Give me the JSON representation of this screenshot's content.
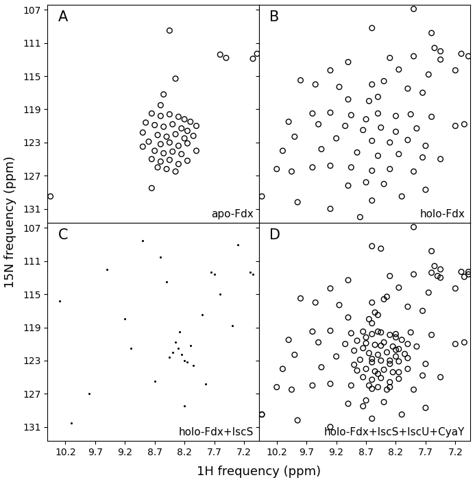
{
  "x_label": "1H frequency (ppm)",
  "y_label": "15N frequency (ppm)",
  "chart_data": [
    {
      "type": "scatter",
      "title": "A",
      "annotation": "apo-Fdx",
      "color": "#000000",
      "marker": "circle",
      "tick_labels": "y",
      "xlim": [
        10.5,
        6.95
      ],
      "ylim": [
        132.7,
        106.4
      ],
      "xticks": [
        10.2,
        9.7,
        9.2,
        8.7,
        8.2,
        7.7,
        7.2
      ],
      "yticks": [
        107,
        111,
        115,
        119,
        123,
        127,
        131
      ],
      "x": [
        8.75,
        8.6,
        8.45,
        8.3,
        8.2,
        8.1,
        8.85,
        8.7,
        8.55,
        8.4,
        8.25,
        8.15,
        8.9,
        8.65,
        8.5,
        8.35,
        8.2,
        8.05,
        8.8,
        8.6,
        8.45,
        8.3,
        8.15,
        8.7,
        8.55,
        8.4,
        8.25,
        8.75,
        8.6,
        8.45,
        8.3,
        8.15,
        8.5,
        8.35,
        8.65,
        8.0,
        8.0,
        8.9,
        8.75,
        8.45,
        8.35,
        8.55,
        7.6,
        7.5,
        6.98,
        7.05,
        10.45,
        8.6
      ],
      "y": [
        119.5,
        119.8,
        119.6,
        119.9,
        120.2,
        120.5,
        120.6,
        120.9,
        121.1,
        120.8,
        121.3,
        121.6,
        121.8,
        122.1,
        122.3,
        122.0,
        122.5,
        122.2,
        122.9,
        123.2,
        123.0,
        123.4,
        123.1,
        124.0,
        124.3,
        124.1,
        124.4,
        125.0,
        125.3,
        125.1,
        125.6,
        125.2,
        126.2,
        126.5,
        126.0,
        121.0,
        124.0,
        123.5,
        128.5,
        109.5,
        115.3,
        117.2,
        112.4,
        112.8,
        112.3,
        112.9,
        129.5,
        118.5
      ]
    },
    {
      "type": "scatter",
      "title": "B",
      "annotation": "holo-Fdx",
      "color": "#000000",
      "marker": "circle",
      "tick_labels": false,
      "xlim": [
        10.5,
        6.95
      ],
      "ylim": [
        132.7,
        106.4
      ],
      "xticks": [
        10.2,
        9.7,
        9.2,
        8.7,
        8.2,
        7.7,
        7.2
      ],
      "yticks": [
        107,
        111,
        115,
        119,
        123,
        127,
        131
      ],
      "x": [
        7.9,
        8.6,
        7.6,
        7.55,
        7.45,
        7.1,
        6.98,
        7.45,
        7.9,
        9.0,
        8.3,
        9.3,
        8.15,
        7.65,
        7.2,
        9.8,
        9.55,
        9.15,
        8.6,
        8.4,
        8.0,
        7.75,
        9.0,
        8.65,
        8.5,
        9.6,
        9.3,
        8.95,
        8.7,
        8.5,
        8.2,
        7.95,
        7.6,
        10.0,
        9.5,
        9.05,
        8.75,
        8.45,
        8.2,
        7.85,
        7.2,
        7.05,
        9.9,
        9.2,
        8.6,
        8.3,
        8.0,
        7.7,
        10.1,
        9.45,
        8.85,
        8.5,
        8.15,
        7.75,
        7.45,
        10.2,
        9.95,
        9.6,
        9.3,
        8.95,
        8.6,
        8.3,
        7.9,
        8.7,
        9.0,
        8.4,
        10.45,
        9.85,
        9.3,
        8.6,
        8.1,
        7.7,
        8.8
      ],
      "y": [
        106.9,
        109.2,
        109.8,
        111.6,
        112.0,
        112.3,
        112.6,
        113.0,
        112.6,
        113.3,
        112.8,
        114.3,
        114.2,
        114.8,
        114.3,
        115.5,
        116.0,
        116.3,
        116.0,
        115.6,
        116.5,
        117.0,
        117.8,
        118.0,
        117.5,
        119.5,
        119.4,
        119.7,
        120.2,
        119.5,
        119.8,
        119.6,
        119.9,
        120.5,
        120.8,
        121.0,
        121.5,
        121.2,
        121.7,
        121.3,
        121.0,
        120.8,
        122.3,
        122.5,
        122.8,
        123.0,
        122.7,
        123.4,
        124.0,
        123.8,
        124.2,
        124.6,
        124.4,
        124.8,
        125.0,
        126.2,
        126.5,
        126.0,
        125.8,
        126.0,
        126.4,
        126.2,
        126.5,
        127.8,
        128.2,
        128.0,
        129.5,
        130.2,
        131.0,
        130.0,
        129.5,
        128.7,
        132.0
      ]
    },
    {
      "type": "scatter",
      "title": "C",
      "annotation": "holo-Fdx+IscS",
      "color": "#000000",
      "marker": "dot",
      "tick_labels": true,
      "xlim": [
        10.5,
        6.95
      ],
      "ylim": [
        132.7,
        106.4
      ],
      "xticks": [
        10.2,
        9.7,
        9.2,
        8.7,
        8.2,
        7.7,
        7.2
      ],
      "yticks": [
        107,
        111,
        115,
        119,
        123,
        127,
        131
      ],
      "x": [
        8.3,
        8.25,
        8.2,
        8.15,
        8.35,
        8.4,
        8.1,
        8.28,
        8.05,
        8.45,
        7.75,
        7.7,
        7.1,
        7.05,
        7.6,
        9.2,
        9.5,
        8.9,
        7.9,
        10.3,
        8.6,
        9.1,
        7.4,
        8.7,
        9.8,
        7.85,
        8.2,
        10.1,
        8.5,
        7.3
      ],
      "y": [
        121.5,
        122.3,
        123.0,
        123.2,
        120.8,
        122.0,
        121.2,
        119.5,
        123.6,
        122.6,
        112.3,
        112.6,
        112.3,
        112.6,
        115.0,
        118.0,
        112.0,
        108.5,
        117.5,
        115.8,
        110.5,
        121.5,
        118.8,
        125.5,
        127.0,
        125.8,
        128.5,
        130.5,
        113.5,
        109.0
      ]
    },
    {
      "type": "scatter",
      "title": "D",
      "annotation": "holo-Fdx+IscS+IscU+CyaY",
      "color": "#000000",
      "marker": "circle",
      "tick_labels": "x",
      "xlim": [
        10.5,
        6.95
      ],
      "ylim": [
        132.7,
        106.4
      ],
      "xticks": [
        10.2,
        9.7,
        9.2,
        8.7,
        8.2,
        7.7,
        7.2
      ],
      "yticks": [
        107,
        111,
        115,
        119,
        123,
        127,
        131
      ],
      "x": [
        7.9,
        8.6,
        7.6,
        7.55,
        7.45,
        7.1,
        6.98,
        7.45,
        7.9,
        9.0,
        8.3,
        9.3,
        8.15,
        7.65,
        7.2,
        9.8,
        9.55,
        9.15,
        8.6,
        8.4,
        8.0,
        7.75,
        9.0,
        8.65,
        8.5,
        9.6,
        9.3,
        8.95,
        8.7,
        8.5,
        8.2,
        7.95,
        7.6,
        10.0,
        9.5,
        9.05,
        8.75,
        8.45,
        8.2,
        7.85,
        7.2,
        7.05,
        9.9,
        9.2,
        8.6,
        8.3,
        8.0,
        7.7,
        10.1,
        9.45,
        8.85,
        8.5,
        8.15,
        7.75,
        7.45,
        10.2,
        9.95,
        9.6,
        9.3,
        8.95,
        8.6,
        8.3,
        7.9,
        8.7,
        9.0,
        8.4,
        10.45,
        9.85,
        9.3,
        8.6,
        8.1,
        7.7,
        8.75,
        8.6,
        8.45,
        8.3,
        8.2,
        8.1,
        8.85,
        8.7,
        8.55,
        8.4,
        8.25,
        8.15,
        8.9,
        8.65,
        8.5,
        8.35,
        8.2,
        8.05,
        8.8,
        8.6,
        8.45,
        8.3,
        8.15,
        8.7,
        8.55,
        8.4,
        8.25,
        8.75,
        8.6,
        8.45,
        8.3,
        8.15,
        8.5,
        8.35,
        8.65,
        8.0,
        8.0,
        8.9,
        8.75,
        8.45,
        8.35,
        8.55,
        7.6,
        7.5,
        6.98,
        7.05,
        10.45,
        8.6
      ],
      "y": [
        106.9,
        109.2,
        109.8,
        111.6,
        112.0,
        112.3,
        112.6,
        113.0,
        112.6,
        113.3,
        112.8,
        114.3,
        114.2,
        114.8,
        114.3,
        115.5,
        116.0,
        116.3,
        116.0,
        115.6,
        116.5,
        117.0,
        117.8,
        118.0,
        117.5,
        119.5,
        119.4,
        119.7,
        120.2,
        119.5,
        119.8,
        119.6,
        119.9,
        120.5,
        120.8,
        121.0,
        121.5,
        121.2,
        121.7,
        121.3,
        121.0,
        120.8,
        122.3,
        122.5,
        122.8,
        123.0,
        122.7,
        123.4,
        124.0,
        123.8,
        124.2,
        124.6,
        124.4,
        124.8,
        125.0,
        126.2,
        126.5,
        126.0,
        125.8,
        126.0,
        126.4,
        126.2,
        126.5,
        127.8,
        128.2,
        128.0,
        129.5,
        130.2,
        131.0,
        130.0,
        129.5,
        128.7,
        119.5,
        119.8,
        119.6,
        119.9,
        120.2,
        120.5,
        120.6,
        120.9,
        121.1,
        120.8,
        121.3,
        121.6,
        121.8,
        122.1,
        122.3,
        122.0,
        122.5,
        122.2,
        122.9,
        123.2,
        123.0,
        123.4,
        123.1,
        124.0,
        124.3,
        124.1,
        124.4,
        125.0,
        125.3,
        125.1,
        125.6,
        125.2,
        126.2,
        126.5,
        126.0,
        121.0,
        124.0,
        123.5,
        128.5,
        109.5,
        115.3,
        117.2,
        112.4,
        112.8,
        112.3,
        112.9,
        129.5,
        118.5
      ]
    }
  ]
}
